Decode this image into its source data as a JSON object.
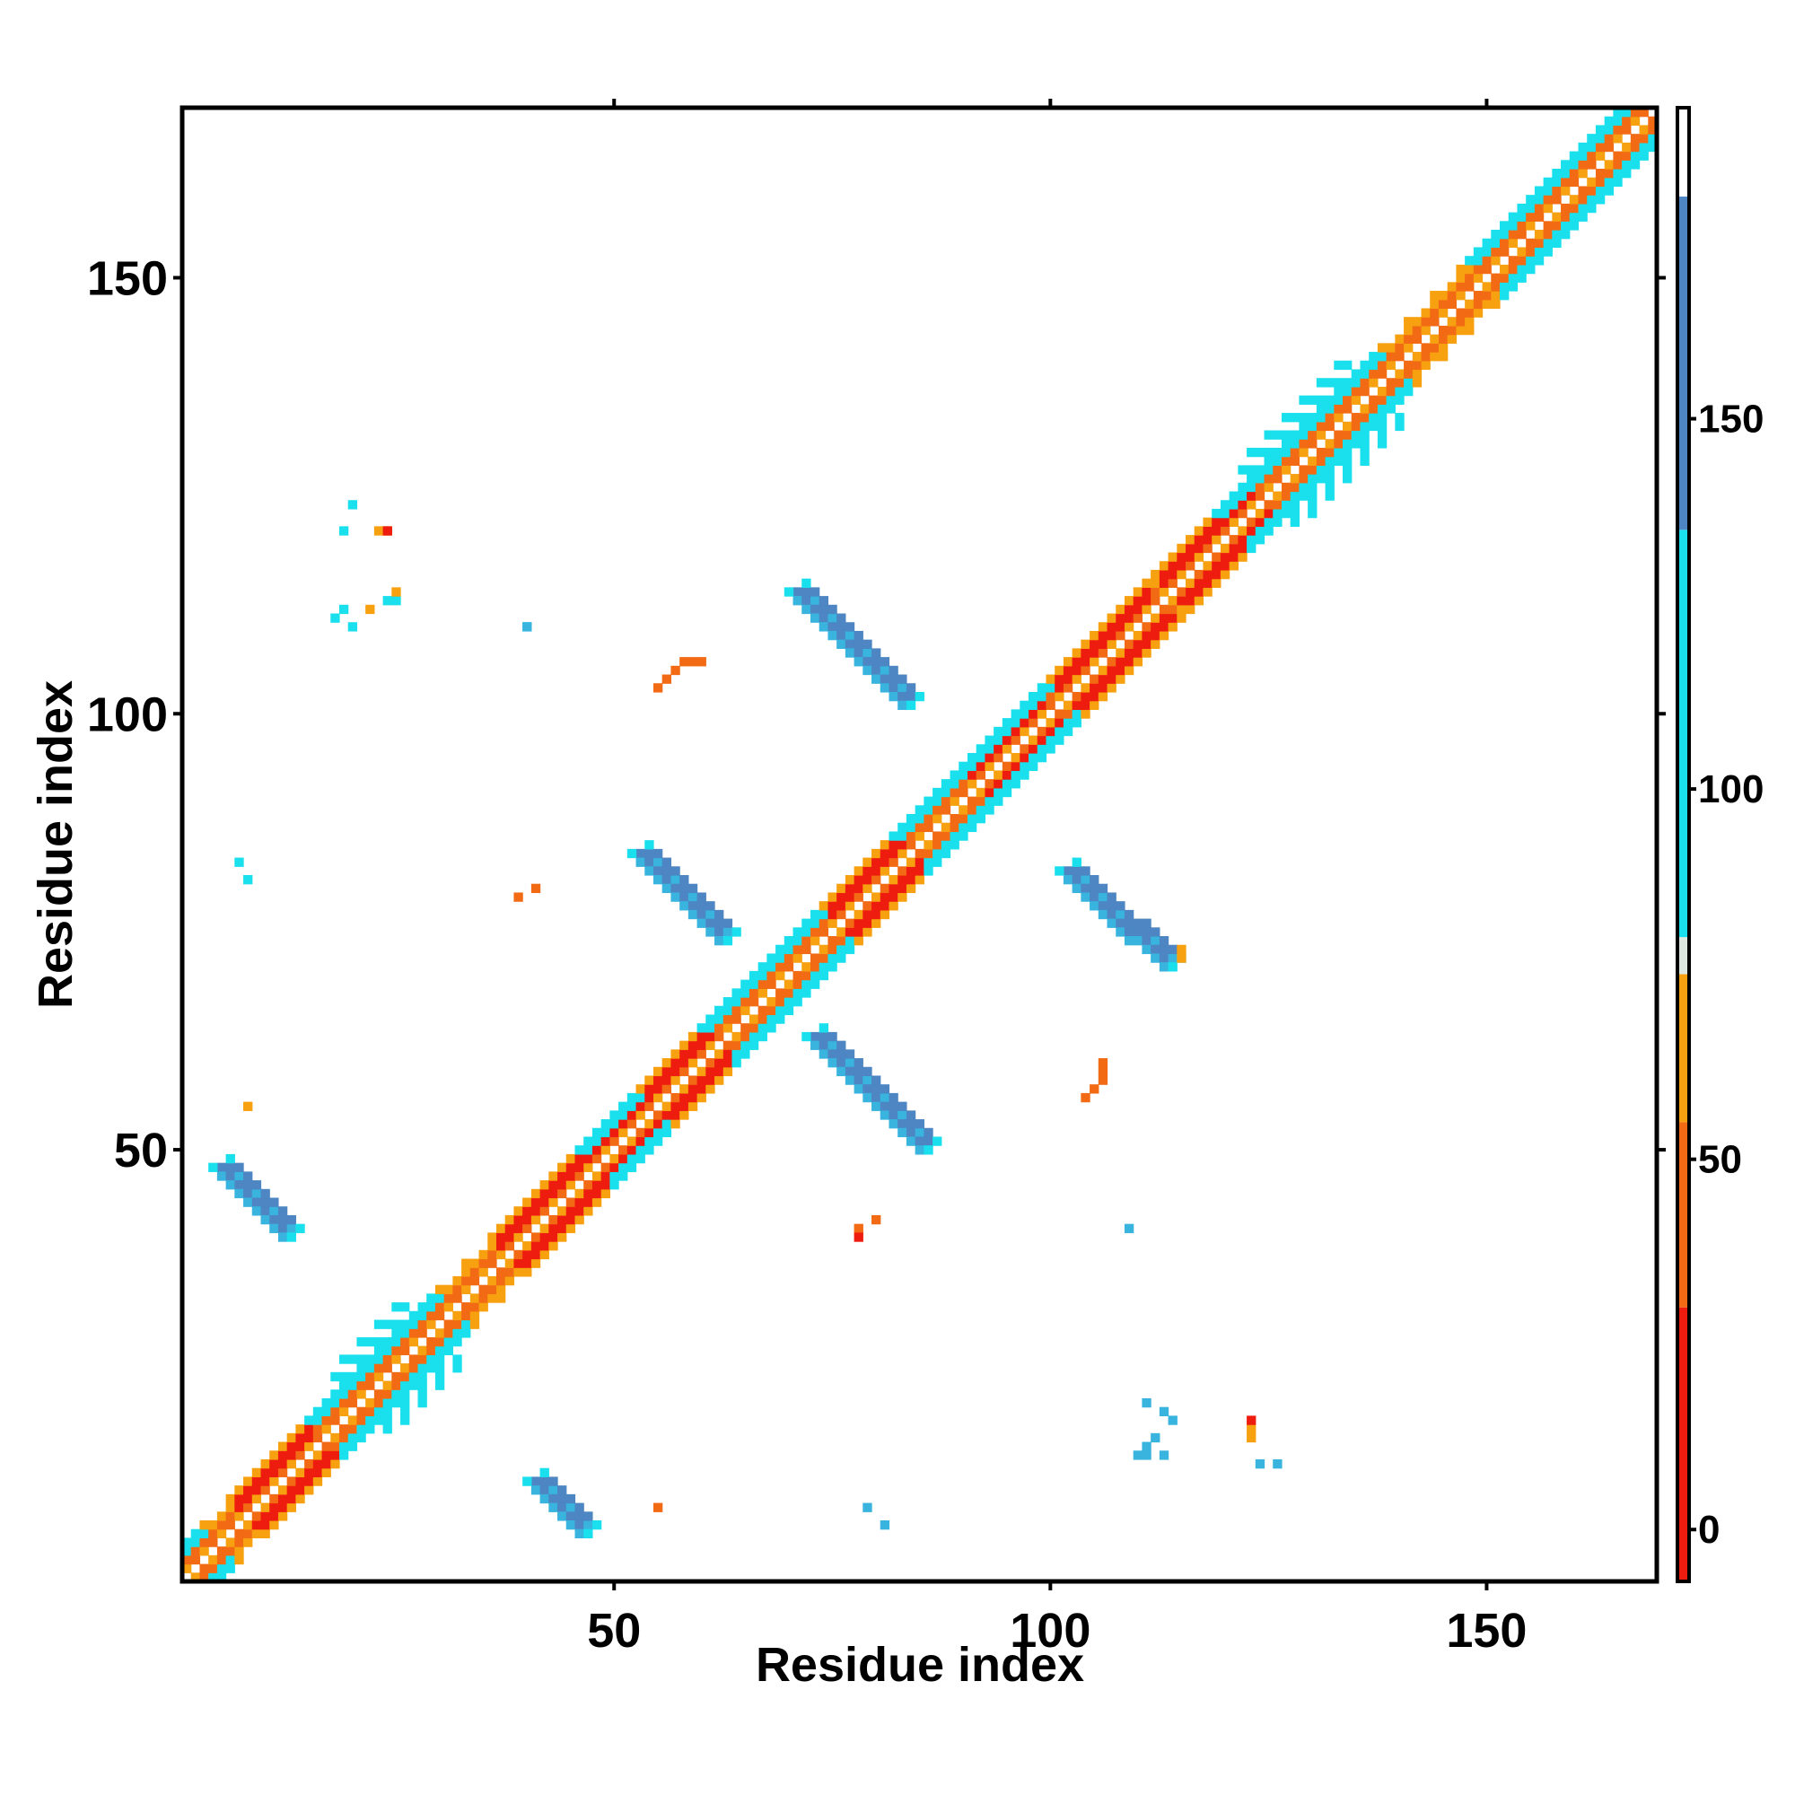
{
  "chart_data": {
    "type": "heatmap",
    "title": "",
    "xlabel": "Residue index",
    "ylabel": "Residue index",
    "xlim": [
      1,
      169
    ],
    "ylim": [
      1,
      169
    ],
    "x_ticks": [
      50,
      100,
      150
    ],
    "y_ticks": [
      50,
      100,
      150
    ],
    "colorbar": {
      "ticks": [
        0,
        50,
        100,
        150
      ],
      "range": [
        -7,
        192
      ],
      "bands": [
        {
          "from": -7,
          "to": 30,
          "color": "#ee1c0e"
        },
        {
          "from": 30,
          "to": 55,
          "color": "#f26a14"
        },
        {
          "from": 55,
          "to": 75,
          "color": "#f7a010"
        },
        {
          "from": 75,
          "to": 80,
          "color": "#dde8e0"
        },
        {
          "from": 80,
          "to": 135,
          "color": "#19e0ec"
        },
        {
          "from": 135,
          "to": 180,
          "color": "#4d86c2"
        },
        {
          "from": 180,
          "to": 192,
          "color": "#ffffff"
        }
      ]
    },
    "colors": {
      "red": "#ee1c0e",
      "dark_orange": "#f26a14",
      "orange": "#f7a010",
      "cyan": "#19e0ec",
      "light_blue": "#38b4de",
      "steel_blue": "#4d86c2"
    },
    "diagonal_band": {
      "from": 1,
      "to": 169
    },
    "off_diagonal_regions": [
      {
        "color": "steel_blue",
        "points": [
          [
            5,
            48
          ],
          [
            6,
            47
          ],
          [
            7,
            46
          ],
          [
            8,
            45
          ],
          [
            9,
            44
          ],
          [
            10,
            43
          ],
          [
            11,
            42
          ],
          [
            12,
            41
          ]
        ]
      },
      {
        "color": "steel_blue",
        "points": [
          [
            41,
            12
          ],
          [
            42,
            11
          ],
          [
            43,
            10
          ],
          [
            44,
            9
          ],
          [
            45,
            8
          ],
          [
            46,
            7
          ]
        ]
      },
      {
        "color": "steel_blue",
        "points": [
          [
            53,
            84
          ],
          [
            54,
            83
          ],
          [
            55,
            82
          ],
          [
            56,
            81
          ],
          [
            57,
            80
          ],
          [
            58,
            79
          ],
          [
            59,
            78
          ],
          [
            60,
            77
          ],
          [
            61,
            76
          ],
          [
            62,
            75
          ]
        ]
      },
      {
        "color": "steel_blue",
        "points": [
          [
            73,
            63
          ],
          [
            74,
            62
          ],
          [
            75,
            61
          ],
          [
            76,
            60
          ],
          [
            77,
            59
          ],
          [
            78,
            58
          ],
          [
            79,
            57
          ],
          [
            80,
            56
          ],
          [
            81,
            55
          ],
          [
            82,
            54
          ],
          [
            83,
            53
          ],
          [
            84,
            52
          ],
          [
            85,
            51
          ]
        ]
      },
      {
        "color": "steel_blue",
        "points": [
          [
            71,
            114
          ],
          [
            72,
            113
          ],
          [
            73,
            112
          ],
          [
            74,
            111
          ],
          [
            75,
            110
          ],
          [
            76,
            109
          ],
          [
            77,
            108
          ],
          [
            78,
            107
          ],
          [
            79,
            106
          ],
          [
            80,
            105
          ],
          [
            81,
            104
          ],
          [
            82,
            103
          ],
          [
            83,
            102
          ]
        ]
      },
      {
        "color": "steel_blue",
        "points": [
          [
            102,
            82
          ],
          [
            103,
            81
          ],
          [
            104,
            80
          ],
          [
            105,
            79
          ],
          [
            106,
            78
          ],
          [
            107,
            77
          ],
          [
            108,
            76
          ],
          [
            109,
            75
          ],
          [
            110,
            75
          ],
          [
            111,
            74
          ],
          [
            112,
            73
          ],
          [
            113,
            72
          ]
        ]
      },
      {
        "color": "cyan",
        "points": [
          [
            18,
            111
          ],
          [
            19,
            112
          ],
          [
            20,
            110
          ],
          [
            24,
            113
          ],
          [
            25,
            113
          ],
          [
            19,
            121
          ],
          [
            20,
            124
          ],
          [
            7,
            83
          ],
          [
            8,
            81
          ],
          [
            40,
            110
          ]
        ]
      },
      {
        "color": "orange",
        "points": [
          [
            22,
            112
          ],
          [
            23,
            121
          ],
          [
            24,
            121
          ],
          [
            25,
            114
          ],
          [
            8,
            55
          ],
          [
            115,
            72
          ],
          [
            115,
            73
          ],
          [
            123,
            17
          ],
          [
            123,
            18
          ]
        ]
      },
      {
        "color": "dark_orange",
        "points": [
          [
            55,
            103
          ],
          [
            56,
            104
          ],
          [
            57,
            105
          ],
          [
            58,
            106
          ],
          [
            59,
            106
          ],
          [
            60,
            106
          ],
          [
            39,
            79
          ],
          [
            41,
            80
          ],
          [
            104,
            56
          ],
          [
            105,
            57
          ],
          [
            106,
            58
          ],
          [
            106,
            59
          ],
          [
            106,
            60
          ],
          [
            55,
            9
          ],
          [
            78,
            41
          ],
          [
            80,
            42
          ]
        ]
      },
      {
        "color": "red",
        "points": [
          [
            24,
            121
          ],
          [
            78,
            40
          ],
          [
            123,
            19
          ]
        ]
      },
      {
        "color": "light_blue",
        "points": [
          [
            79,
            9
          ],
          [
            81,
            7
          ],
          [
            109,
            41
          ],
          [
            111,
            15
          ],
          [
            111,
            16
          ],
          [
            124,
            14
          ],
          [
            126,
            14
          ],
          [
            111,
            21
          ],
          [
            113,
            20
          ],
          [
            114,
            19
          ],
          [
            112,
            17
          ],
          [
            113,
            15
          ],
          [
            110,
            15
          ],
          [
            40,
            110
          ]
        ]
      }
    ]
  }
}
